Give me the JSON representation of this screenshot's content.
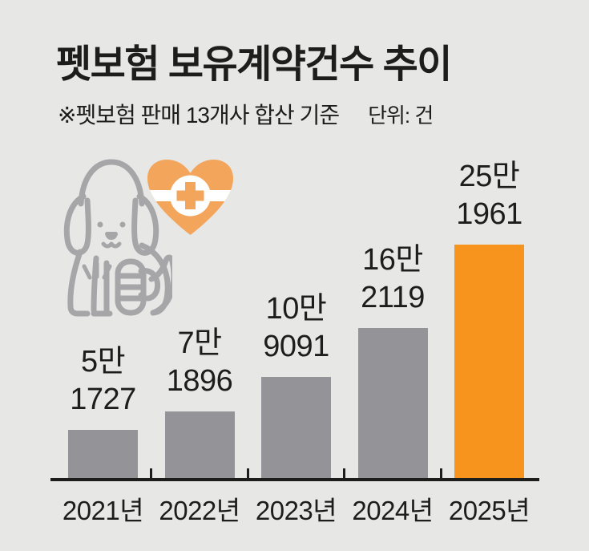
{
  "page": {
    "background": "#e7e7e6",
    "text_color": "#1d1d1b"
  },
  "header": {
    "title": "펫보험 보유계약건수 추이",
    "note": "※펫보험 판매 13개사 합산 기준",
    "unit_label": "단위: 건"
  },
  "icons": {
    "dog": "injured-dog-icon",
    "heart": "medical-heart-icon",
    "dog_color": "#a6a6a8",
    "heart_color": "#f2a55b",
    "knockout_color": "#ffffff"
  },
  "chart_data": {
    "type": "bar",
    "title": "펫보험 보유계약건수 추이",
    "unit": "건",
    "categories": [
      "2021년",
      "2022년",
      "2023년",
      "2024년",
      "2025년"
    ],
    "values": [
      51727,
      71896,
      109091,
      162119,
      251961
    ],
    "value_labels": [
      [
        "5만",
        "1727"
      ],
      [
        "7만",
        "1896"
      ],
      [
        "10만",
        "9091"
      ],
      [
        "16만",
        "2119"
      ],
      [
        "25만",
        "1961"
      ]
    ],
    "bar_colors": [
      "#949498",
      "#949498",
      "#949498",
      "#949498",
      "#f6941e"
    ],
    "highlight_index": 4,
    "ylim": [
      0,
      260000
    ],
    "axis_color": "#1d1d1b",
    "grid": false,
    "legend": false
  }
}
